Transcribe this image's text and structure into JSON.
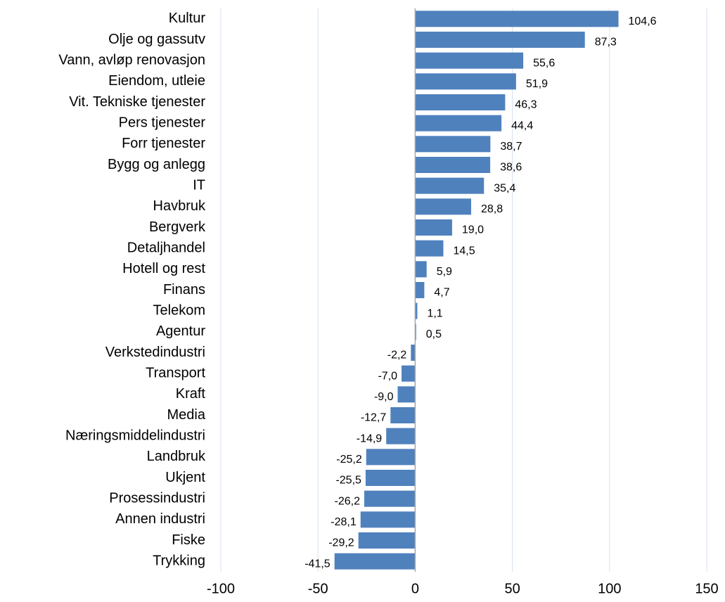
{
  "chart_data": {
    "type": "bar",
    "orientation": "horizontal",
    "categories": [
      "Kultur",
      "Olje og gassutv",
      "Vann, avløp renovasjon",
      "Eiendom, utleie",
      "Vit. Tekniske tjenester",
      "Pers tjenester",
      "Forr tjenester",
      "Bygg og anlegg",
      "IT",
      "Havbruk",
      "Bergverk",
      "Detaljhandel",
      "Hotell og rest",
      "Finans",
      "Telekom",
      "Agentur",
      "Verkstedindustri",
      "Transport",
      "Kraft",
      "Media",
      "Næringsmiddelindustri",
      "Landbruk",
      "Ukjent",
      "Prosessindustri",
      "Annen industri",
      "Fiske",
      "Trykking"
    ],
    "values": [
      104.6,
      87.3,
      55.6,
      51.9,
      46.3,
      44.4,
      38.7,
      38.6,
      35.4,
      28.8,
      19.0,
      14.5,
      5.9,
      4.7,
      1.1,
      0.5,
      -2.2,
      -7.0,
      -9.0,
      -12.7,
      -14.9,
      -25.2,
      -25.5,
      -26.2,
      -28.1,
      -29.2,
      -41.5
    ],
    "value_labels": [
      "104,6",
      "87,3",
      "55,6",
      "51,9",
      "46,3",
      "44,4",
      "38,7",
      "38,6",
      "35,4",
      "28,8",
      "19,0",
      "14,5",
      "5,9",
      "4,7",
      "1,1",
      "0,5",
      "-2,2",
      "-7,0",
      "-9,0",
      "-12,7",
      "-14,9",
      "-25,2",
      "-25,5",
      "-26,2",
      "-28,1",
      "-29,2",
      "-41,5"
    ],
    "color": "#4f81bd",
    "xlim": [
      -100,
      150
    ],
    "xticks": [
      -100,
      -50,
      0,
      50,
      100,
      150
    ],
    "grid": true
  }
}
